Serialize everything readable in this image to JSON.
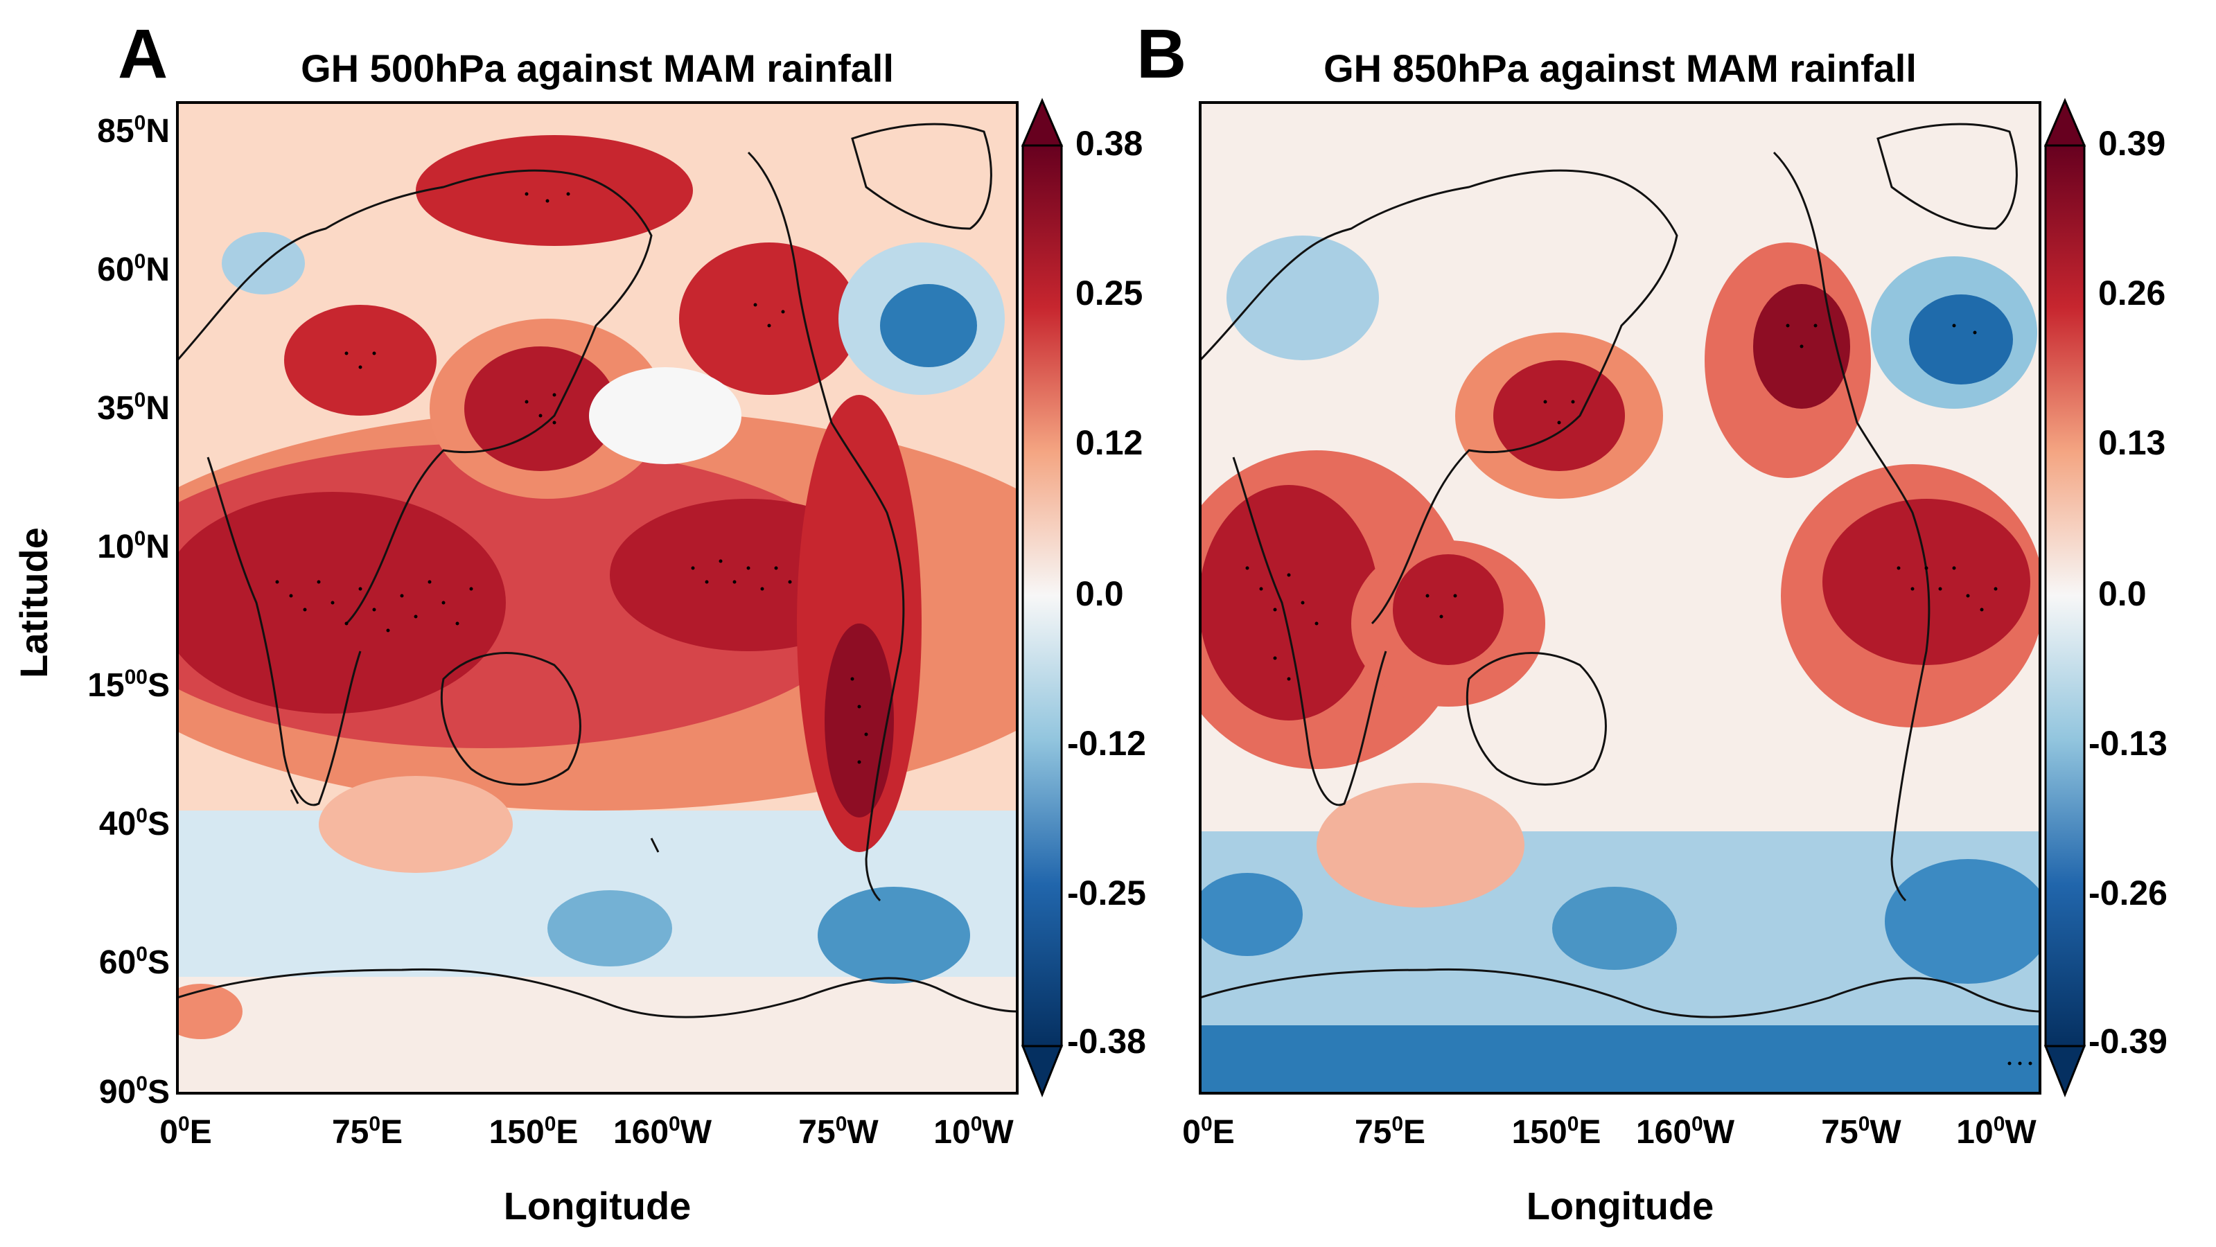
{
  "figure": {
    "ylabel": "Latitude",
    "xlabel": "Longitude"
  },
  "chart_data": [
    {
      "type": "heatmap",
      "panel_letter": "A",
      "title": "GH 500hPa against MAM rainfall",
      "xlabel": "Longitude",
      "ylabel": "Latitude",
      "xticks": [
        {
          "label": "0",
          "sup": "0",
          "suffix": "E"
        },
        {
          "label": "75",
          "sup": "0",
          "suffix": "E"
        },
        {
          "label": "150",
          "sup": "0",
          "suffix": "E"
        },
        {
          "label": "160",
          "sup": "0",
          "suffix": "W"
        },
        {
          "label": "75",
          "sup": "0",
          "suffix": "W"
        },
        {
          "label": "10",
          "sup": "0",
          "suffix": "W"
        }
      ],
      "yticks": [
        {
          "label": "85",
          "sup": "0",
          "suffix": "N"
        },
        {
          "label": "60",
          "sup": "0",
          "suffix": "N"
        },
        {
          "label": "35",
          "sup": "0",
          "suffix": "N"
        },
        {
          "label": "10",
          "sup": "0",
          "suffix": "N"
        },
        {
          "label": "15",
          "sup": "00",
          "suffix": "S"
        },
        {
          "label": "40",
          "sup": "0",
          "suffix": "S"
        },
        {
          "label": "60",
          "sup": "0",
          "suffix": "S"
        },
        {
          "label": "90",
          "sup": "0",
          "suffix": "S"
        }
      ],
      "colorbar": {
        "ticks": [
          "0.38",
          "0.25",
          "0.12",
          "0.0",
          "-0.12",
          "-0.25",
          "-0.38"
        ],
        "range": [
          -0.38,
          0.38
        ],
        "extend": "both"
      },
      "features": [
        {
          "name": "tropical positive band",
          "lon_lat": [
            100,
            0
          ],
          "value": 0.36
        },
        {
          "name": "north pacific high",
          "lon_lat": [
            150,
            38
          ],
          "value": 0.34
        },
        {
          "name": "arctic siberia high",
          "lon_lat": [
            150,
            75
          ],
          "value": 0.32
        },
        {
          "name": "north america positive",
          "lon_lat": [
            255,
            55
          ],
          "value": 0.33
        },
        {
          "name": "north atlantic low",
          "lon_lat": [
            310,
            55
          ],
          "value": -0.26
        },
        {
          "name": "south pacific low",
          "lon_lat": [
            200,
            -55
          ],
          "value": -0.2
        },
        {
          "name": "south atlantic low",
          "lon_lat": [
            305,
            -55
          ],
          "value": -0.22
        },
        {
          "name": "south america positive",
          "lon_lat": [
            290,
            -20
          ],
          "value": 0.35
        }
      ]
    },
    {
      "type": "heatmap",
      "panel_letter": "B",
      "title": "GH 850hPa against MAM rainfall",
      "xlabel": "Longitude",
      "ylabel": "Latitude",
      "xticks": [
        {
          "label": "0",
          "sup": "0",
          "suffix": "E"
        },
        {
          "label": "75",
          "sup": "0",
          "suffix": "E"
        },
        {
          "label": "150",
          "sup": "0",
          "suffix": "E"
        },
        {
          "label": "160",
          "sup": "0",
          "suffix": "W"
        },
        {
          "label": "75",
          "sup": "0",
          "suffix": "W"
        },
        {
          "label": "10",
          "sup": "0",
          "suffix": "W"
        }
      ],
      "colorbar": {
        "ticks": [
          "0.39",
          "0.26",
          "0.13",
          "0.0",
          "-0.13",
          "-0.26",
          "-0.39"
        ],
        "range": [
          -0.39,
          0.39
        ],
        "extend": "both"
      },
      "features": [
        {
          "name": "africa indian ocean positive",
          "lon_lat": [
            60,
            0
          ],
          "value": 0.34
        },
        {
          "name": "north pacific high",
          "lon_lat": [
            150,
            38
          ],
          "value": 0.35
        },
        {
          "name": "north america positive",
          "lon_lat": [
            255,
            50
          ],
          "value": 0.34
        },
        {
          "name": "north atlantic low",
          "lon_lat": [
            310,
            55
          ],
          "value": -0.3
        },
        {
          "name": "southern ocean low belt",
          "lon_lat": [
            180,
            -60
          ],
          "value": -0.24
        },
        {
          "name": "antarctic low",
          "lon_lat": [
            180,
            -85
          ],
          "value": -0.3
        }
      ]
    }
  ]
}
